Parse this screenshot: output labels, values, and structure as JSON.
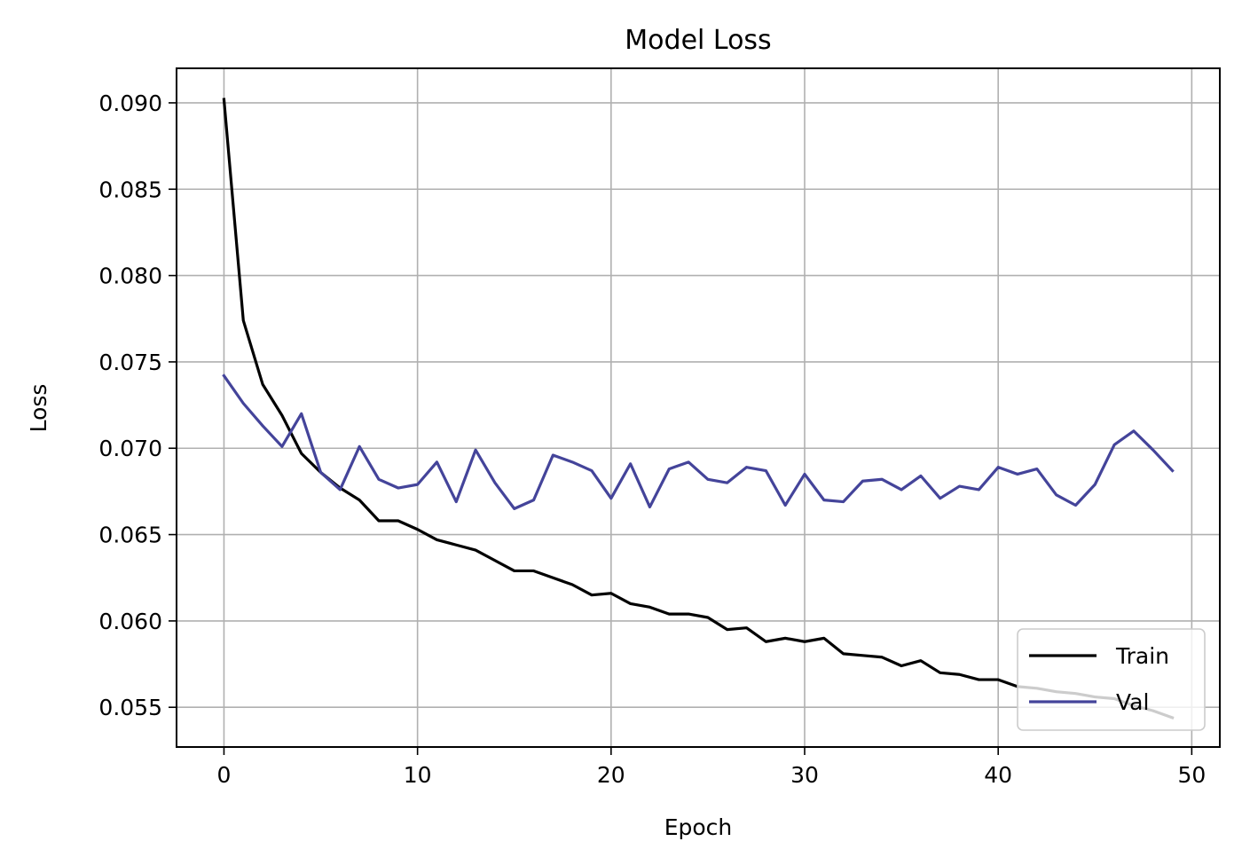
{
  "chart_data": {
    "type": "line",
    "title": "Model Loss",
    "xlabel": "Epoch",
    "ylabel": "Loss",
    "xlim": [
      -2.45,
      51.45
    ],
    "ylim": [
      0.0527,
      0.092
    ],
    "xticks": [
      0,
      10,
      20,
      30,
      40,
      50
    ],
    "xtick_labels": [
      "0",
      "10",
      "20",
      "30",
      "40",
      "50"
    ],
    "yticks": [
      0.055,
      0.06,
      0.065,
      0.07,
      0.075,
      0.08,
      0.085,
      0.09
    ],
    "ytick_labels": [
      "0.055",
      "0.060",
      "0.065",
      "0.070",
      "0.075",
      "0.080",
      "0.085",
      "0.090"
    ],
    "grid": true,
    "legend_position": "lower-right",
    "x": [
      0,
      1,
      2,
      3,
      4,
      5,
      6,
      7,
      8,
      9,
      10,
      11,
      12,
      13,
      14,
      15,
      16,
      17,
      18,
      19,
      20,
      21,
      22,
      23,
      24,
      25,
      26,
      27,
      28,
      29,
      30,
      31,
      32,
      33,
      34,
      35,
      36,
      37,
      38,
      39,
      40,
      41,
      42,
      43,
      44,
      45,
      46,
      47,
      48,
      49
    ],
    "series": [
      {
        "name": "Train",
        "color": "#000000",
        "values": [
          0.0902,
          0.0774,
          0.0737,
          0.0719,
          0.0697,
          0.0686,
          0.0677,
          0.067,
          0.0658,
          0.0658,
          0.0653,
          0.0647,
          0.0644,
          0.0641,
          0.0635,
          0.0629,
          0.0629,
          0.0625,
          0.0621,
          0.0615,
          0.0616,
          0.061,
          0.0608,
          0.0604,
          0.0604,
          0.0602,
          0.0595,
          0.0596,
          0.0588,
          0.059,
          0.0588,
          0.059,
          0.0581,
          0.058,
          0.0579,
          0.0574,
          0.0577,
          0.057,
          0.0569,
          0.0566,
          0.0566,
          0.0562,
          0.0561,
          0.0559,
          0.0558,
          0.0556,
          0.0555,
          0.0551,
          0.0548,
          0.0544
        ]
      },
      {
        "name": "Val",
        "color": "#44449a",
        "values": [
          0.0742,
          0.0726,
          0.0713,
          0.0701,
          0.072,
          0.0686,
          0.0676,
          0.0701,
          0.0682,
          0.0677,
          0.0679,
          0.0692,
          0.0669,
          0.0699,
          0.068,
          0.0665,
          0.067,
          0.0696,
          0.0692,
          0.0687,
          0.0671,
          0.0691,
          0.0666,
          0.0688,
          0.0692,
          0.0682,
          0.068,
          0.0689,
          0.0687,
          0.0667,
          0.0685,
          0.067,
          0.0669,
          0.0681,
          0.0682,
          0.0676,
          0.0684,
          0.0671,
          0.0678,
          0.0676,
          0.0689,
          0.0685,
          0.0688,
          0.0673,
          0.0667,
          0.0679,
          0.0702,
          0.071,
          0.0699,
          0.0687
        ]
      }
    ]
  }
}
